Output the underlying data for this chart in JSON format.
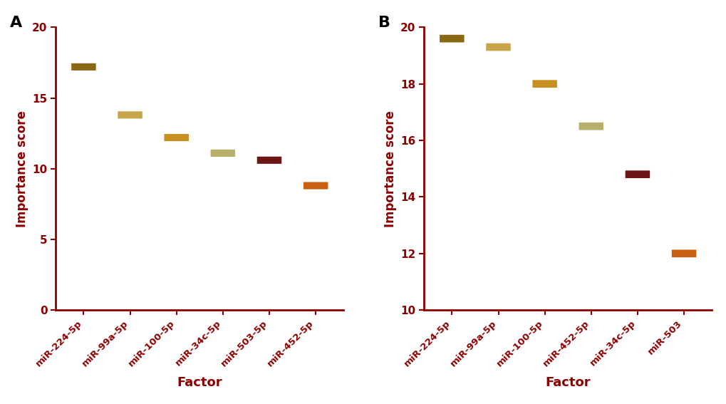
{
  "panel_A": {
    "categories": [
      "miR-224-5p",
      "miR-99a-5p",
      "miR-100-5p",
      "miR-34c-5p",
      "miR-503-5p",
      "miR-452-5p"
    ],
    "values": [
      17.2,
      13.8,
      12.2,
      11.1,
      10.6,
      8.8
    ],
    "colors": [
      "#8B6914",
      "#C8A44A",
      "#C89020",
      "#B8B06A",
      "#6B1515",
      "#C86010"
    ],
    "ylim": [
      0,
      20
    ],
    "yticks": [
      0,
      5,
      10,
      15,
      20
    ],
    "ylabel": "Importance score",
    "xlabel": "Factor",
    "panel_label": "A"
  },
  "panel_B": {
    "categories": [
      "miR-224-5p",
      "miR-99a-5p",
      "miR-100-5p",
      "miR-452-5p",
      "miR-34c-5p",
      "miR-503"
    ],
    "values": [
      19.6,
      19.3,
      18.0,
      16.5,
      14.8,
      12.0
    ],
    "colors": [
      "#8B6914",
      "#C8A44A",
      "#C89020",
      "#B8B06A",
      "#6B1515",
      "#C86010"
    ],
    "ylim": [
      10,
      20
    ],
    "yticks": [
      10,
      12,
      14,
      16,
      18,
      20
    ],
    "ylabel": "Importance score",
    "xlabel": "Factor",
    "panel_label": "B"
  },
  "axis_color": "#8B0000",
  "tick_color": "#8B0000",
  "label_color": "#8B0000"
}
